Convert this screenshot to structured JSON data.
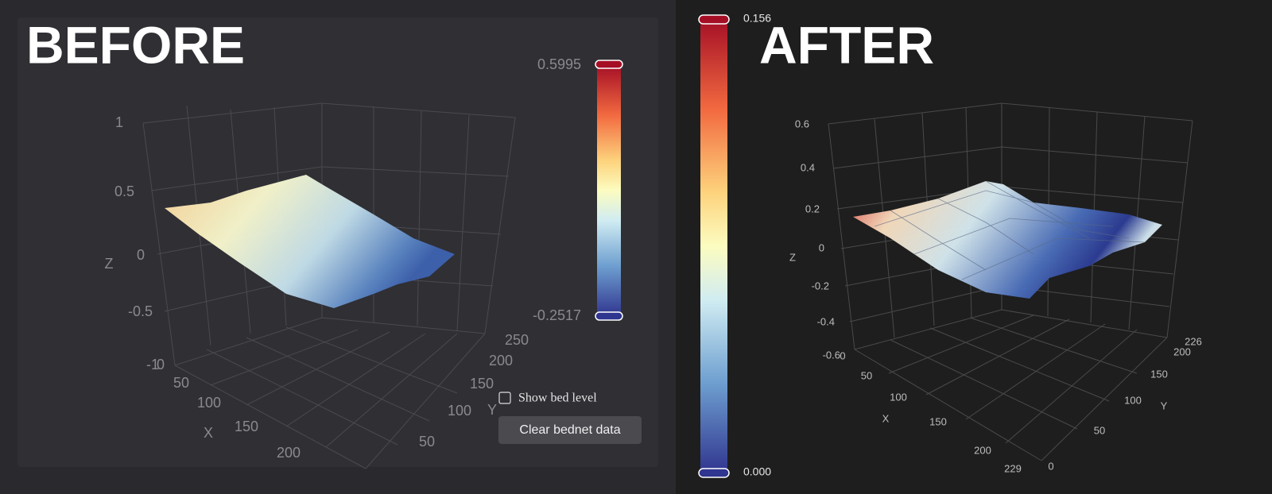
{
  "before": {
    "heading": "BEFORE",
    "z_axis": {
      "title": "Z",
      "ticks": [
        "1",
        "0.5",
        "0",
        "-0.5",
        "-1"
      ]
    },
    "x_axis": {
      "title": "X",
      "ticks": [
        "0",
        "50",
        "100",
        "150",
        "200"
      ]
    },
    "y_axis": {
      "title": "Y",
      "ticks": [
        "50",
        "100",
        "150",
        "200",
        "250"
      ]
    },
    "colorbar": {
      "max": "0.5995",
      "min": "-0.2517"
    },
    "checkbox": "Show bed level",
    "button": "Clear bednet data"
  },
  "after": {
    "heading": "AFTER",
    "z_axis": {
      "title": "Z",
      "ticks": [
        "0.6",
        "0.4",
        "0.2",
        "0",
        "-0.2",
        "-0.4",
        "-0.6"
      ]
    },
    "x_axis": {
      "title": "X",
      "ticks": [
        "0",
        "50",
        "100",
        "150",
        "200",
        "229"
      ]
    },
    "y_axis": {
      "title": "Y",
      "ticks": [
        "0",
        "50",
        "100",
        "150",
        "200",
        "226"
      ]
    },
    "colorbar": {
      "max": "0.156",
      "min": "0.000"
    }
  }
}
